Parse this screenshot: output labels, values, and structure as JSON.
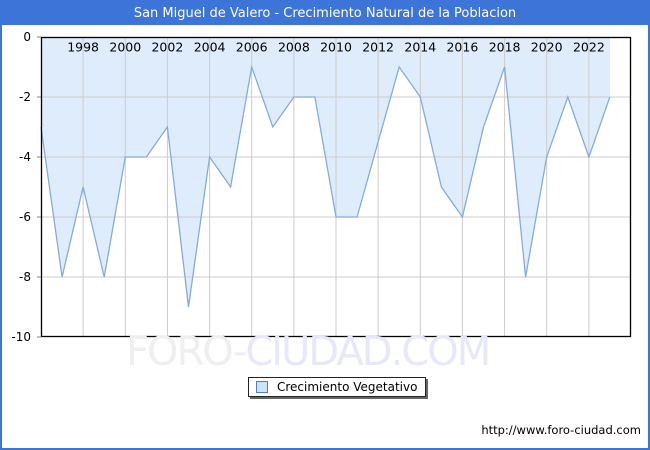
{
  "page": {
    "title": "San Miguel de Valero - Crecimiento Natural de la Poblacion",
    "source_url": "http://www.foro-ciudad.com",
    "watermark": {
      "part1": "FORO-",
      "part2": "CIUDAD.COM"
    },
    "colors": {
      "frame_blue": "#3c74d8",
      "titlebar_text": "#ffffff",
      "plot_border": "#000000",
      "grid": "#cccccc",
      "area_fill": "#dfecfb",
      "area_line": "#86abdb",
      "tick": "#888888",
      "watermark_gray": "#efeff1",
      "watermark_lavender": "#e7e8f8"
    }
  },
  "legend": {
    "label": "Crecimiento Vegetativo"
  },
  "chart_data": {
    "type": "area",
    "title": "San Miguel de Valero - Crecimiento Natural de la Poblacion",
    "series_name": "Crecimiento Vegetativo",
    "x": [
      1996,
      1997,
      1998,
      1999,
      2000,
      2001,
      2002,
      2003,
      2004,
      2005,
      2006,
      2007,
      2008,
      2009,
      2010,
      2011,
      2012,
      2013,
      2014,
      2015,
      2016,
      2017,
      2018,
      2019,
      2020,
      2021,
      2022,
      2023
    ],
    "values": [
      -3,
      -8,
      -5,
      -8,
      -4,
      -4,
      -3,
      -9,
      -4,
      -5,
      -1,
      -3,
      -2,
      -2,
      -6,
      -6,
      -3.5,
      -1,
      -2,
      -5,
      -6,
      -3,
      -1,
      -8,
      -4,
      -2,
      -4,
      -2
    ],
    "xlim": [
      1996,
      2024
    ],
    "ylim": [
      -10,
      0
    ],
    "xticks": [
      1998,
      2000,
      2002,
      2004,
      2006,
      2008,
      2010,
      2012,
      2014,
      2016,
      2018,
      2020,
      2022
    ],
    "yticks": [
      0,
      -2,
      -4,
      -6,
      -8,
      -10
    ],
    "grid": true,
    "legend_position": "bottom-center",
    "fill_color": "#dfecfb",
    "line_color": "#86abdb",
    "grid_color": "#cccccc"
  }
}
